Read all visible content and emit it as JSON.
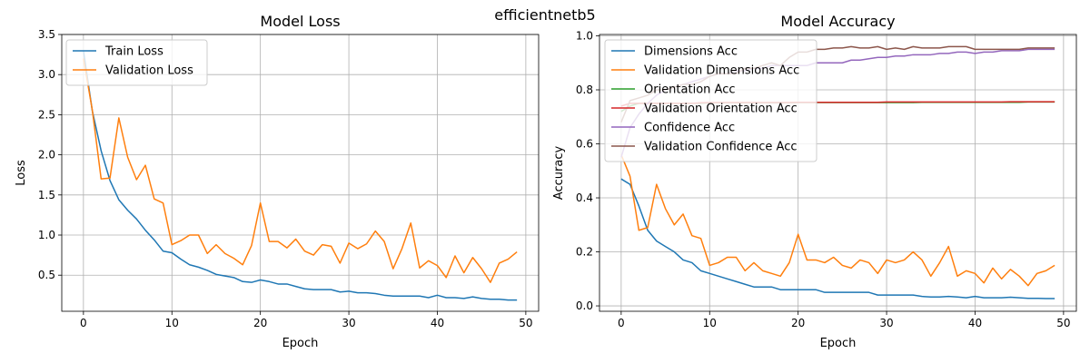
{
  "suptitle": "efficientnetb5",
  "chart_data": [
    {
      "type": "line",
      "title": "Model Loss",
      "xlabel": "Epoch",
      "ylabel": "Loss",
      "xlim": [
        -2.45,
        51.45
      ],
      "ylim": [
        0.05,
        3.5
      ],
      "xticks": [
        0,
        10,
        20,
        30,
        40,
        50
      ],
      "yticks": [
        0.5,
        1.0,
        1.5,
        2.0,
        2.5,
        3.0,
        3.5
      ],
      "ytick_labels": [
        "0.5",
        "1.0",
        "1.5",
        "2.0",
        "2.5",
        "3.0",
        "3.5"
      ],
      "grid": true,
      "legend": "top-left",
      "x": [
        0,
        1,
        2,
        3,
        4,
        5,
        6,
        7,
        8,
        9,
        10,
        11,
        12,
        13,
        14,
        15,
        16,
        17,
        18,
        19,
        20,
        21,
        22,
        23,
        24,
        25,
        26,
        27,
        28,
        29,
        30,
        31,
        32,
        33,
        34,
        35,
        36,
        37,
        38,
        39,
        40,
        41,
        42,
        43,
        44,
        45,
        46,
        47,
        48,
        49
      ],
      "series": [
        {
          "name": "Train Loss",
          "color": "#1f77b4",
          "values": [
            3.3,
            2.55,
            2.05,
            1.68,
            1.44,
            1.31,
            1.2,
            1.06,
            0.94,
            0.8,
            0.78,
            0.7,
            0.63,
            0.6,
            0.56,
            0.51,
            0.49,
            0.47,
            0.42,
            0.41,
            0.44,
            0.42,
            0.39,
            0.39,
            0.36,
            0.33,
            0.32,
            0.32,
            0.32,
            0.29,
            0.3,
            0.28,
            0.28,
            0.27,
            0.25,
            0.24,
            0.24,
            0.24,
            0.24,
            0.22,
            0.25,
            0.22,
            0.22,
            0.21,
            0.23,
            0.21,
            0.2,
            0.2,
            0.19,
            0.19
          ]
        },
        {
          "name": "Validation Loss",
          "color": "#ff7f0e",
          "values": [
            3.2,
            2.56,
            1.7,
            1.71,
            2.46,
            1.97,
            1.69,
            1.87,
            1.45,
            1.4,
            0.88,
            0.93,
            1.0,
            1.0,
            0.77,
            0.88,
            0.77,
            0.71,
            0.63,
            0.87,
            1.4,
            0.92,
            0.92,
            0.84,
            0.95,
            0.8,
            0.75,
            0.88,
            0.86,
            0.65,
            0.9,
            0.83,
            0.89,
            1.05,
            0.92,
            0.58,
            0.83,
            1.15,
            0.59,
            0.68,
            0.62,
            0.47,
            0.74,
            0.53,
            0.72,
            0.58,
            0.41,
            0.65,
            0.7,
            0.79
          ]
        }
      ]
    },
    {
      "type": "line",
      "title": "Model Accuracy",
      "xlabel": "Epoch",
      "ylabel": "Accuracy",
      "xlim": [
        -2.45,
        51.45
      ],
      "ylim": [
        -0.02,
        1.005
      ],
      "xticks": [
        0,
        10,
        20,
        30,
        40,
        50
      ],
      "yticks": [
        0.0,
        0.2,
        0.4,
        0.6,
        0.8,
        1.0
      ],
      "ytick_labels": [
        "0.0",
        "0.2",
        "0.4",
        "0.6",
        "0.8",
        "1.0"
      ],
      "grid": true,
      "legend": "top-left",
      "x": [
        0,
        1,
        2,
        3,
        4,
        5,
        6,
        7,
        8,
        9,
        10,
        11,
        12,
        13,
        14,
        15,
        16,
        17,
        18,
        19,
        20,
        21,
        22,
        23,
        24,
        25,
        26,
        27,
        28,
        29,
        30,
        31,
        32,
        33,
        34,
        35,
        36,
        37,
        38,
        39,
        40,
        41,
        42,
        43,
        44,
        45,
        46,
        47,
        48,
        49
      ],
      "series": [
        {
          "name": "Dimensions Acc",
          "color": "#1f77b4",
          "values": [
            0.47,
            0.45,
            0.37,
            0.28,
            0.24,
            0.22,
            0.2,
            0.17,
            0.16,
            0.13,
            0.12,
            0.11,
            0.1,
            0.09,
            0.08,
            0.07,
            0.07,
            0.07,
            0.06,
            0.06,
            0.06,
            0.06,
            0.06,
            0.05,
            0.05,
            0.05,
            0.05,
            0.05,
            0.05,
            0.04,
            0.04,
            0.04,
            0.04,
            0.04,
            0.035,
            0.033,
            0.033,
            0.035,
            0.033,
            0.03,
            0.035,
            0.03,
            0.03,
            0.03,
            0.032,
            0.03,
            0.028,
            0.028,
            0.027,
            0.027
          ]
        },
        {
          "name": "Validation Dimensions Acc",
          "color": "#ff7f0e",
          "values": [
            0.56,
            0.48,
            0.28,
            0.29,
            0.45,
            0.36,
            0.3,
            0.34,
            0.26,
            0.25,
            0.15,
            0.16,
            0.18,
            0.18,
            0.13,
            0.16,
            0.13,
            0.12,
            0.11,
            0.16,
            0.265,
            0.17,
            0.17,
            0.16,
            0.18,
            0.15,
            0.14,
            0.17,
            0.16,
            0.12,
            0.17,
            0.16,
            0.17,
            0.2,
            0.17,
            0.11,
            0.16,
            0.22,
            0.11,
            0.13,
            0.12,
            0.085,
            0.14,
            0.1,
            0.135,
            0.11,
            0.075,
            0.12,
            0.13,
            0.15
          ]
        },
        {
          "name": "Orientation Acc",
          "color": "#2ca02c",
          "values": [
            0.72,
            0.74,
            0.75,
            0.75,
            0.75,
            0.75,
            0.75,
            0.75,
            0.75,
            0.75,
            0.752,
            0.752,
            0.752,
            0.752,
            0.752,
            0.752,
            0.752,
            0.752,
            0.752,
            0.752,
            0.753,
            0.753,
            0.753,
            0.753,
            0.753,
            0.753,
            0.753,
            0.753,
            0.753,
            0.753,
            0.753,
            0.753,
            0.753,
            0.753,
            0.754,
            0.754,
            0.754,
            0.754,
            0.754,
            0.754,
            0.754,
            0.754,
            0.754,
            0.754,
            0.754,
            0.754,
            0.755,
            0.755,
            0.755,
            0.755
          ]
        },
        {
          "name": "Validation Orientation Acc",
          "color": "#d62728",
          "values": [
            0.74,
            0.75,
            0.75,
            0.75,
            0.75,
            0.75,
            0.75,
            0.75,
            0.75,
            0.752,
            0.753,
            0.753,
            0.753,
            0.753,
            0.753,
            0.753,
            0.753,
            0.753,
            0.753,
            0.753,
            0.754,
            0.754,
            0.754,
            0.754,
            0.754,
            0.754,
            0.754,
            0.754,
            0.754,
            0.754,
            0.755,
            0.755,
            0.755,
            0.755,
            0.755,
            0.755,
            0.755,
            0.755,
            0.755,
            0.755,
            0.755,
            0.755,
            0.755,
            0.755,
            0.756,
            0.756,
            0.756,
            0.756,
            0.756,
            0.756
          ]
        },
        {
          "name": "Confidence Acc",
          "color": "#9467bd",
          "values": [
            0.55,
            0.66,
            0.71,
            0.75,
            0.78,
            0.8,
            0.81,
            0.82,
            0.83,
            0.84,
            0.85,
            0.86,
            0.86,
            0.87,
            0.87,
            0.88,
            0.88,
            0.89,
            0.89,
            0.89,
            0.89,
            0.89,
            0.9,
            0.9,
            0.9,
            0.9,
            0.91,
            0.91,
            0.915,
            0.92,
            0.92,
            0.925,
            0.925,
            0.93,
            0.93,
            0.93,
            0.935,
            0.935,
            0.94,
            0.94,
            0.935,
            0.94,
            0.94,
            0.945,
            0.945,
            0.945,
            0.95,
            0.95,
            0.95,
            0.95
          ]
        },
        {
          "name": "Validation Confidence Acc",
          "color": "#8c564b",
          "values": [
            0.68,
            0.76,
            0.77,
            0.78,
            0.8,
            0.8,
            0.81,
            0.82,
            0.82,
            0.83,
            0.85,
            0.86,
            0.86,
            0.86,
            0.88,
            0.88,
            0.89,
            0.9,
            0.89,
            0.92,
            0.94,
            0.94,
            0.95,
            0.95,
            0.955,
            0.955,
            0.96,
            0.955,
            0.955,
            0.96,
            0.95,
            0.955,
            0.95,
            0.96,
            0.955,
            0.955,
            0.955,
            0.96,
            0.96,
            0.96,
            0.95,
            0.95,
            0.95,
            0.95,
            0.95,
            0.95,
            0.955,
            0.955,
            0.955,
            0.955
          ]
        }
      ]
    }
  ]
}
